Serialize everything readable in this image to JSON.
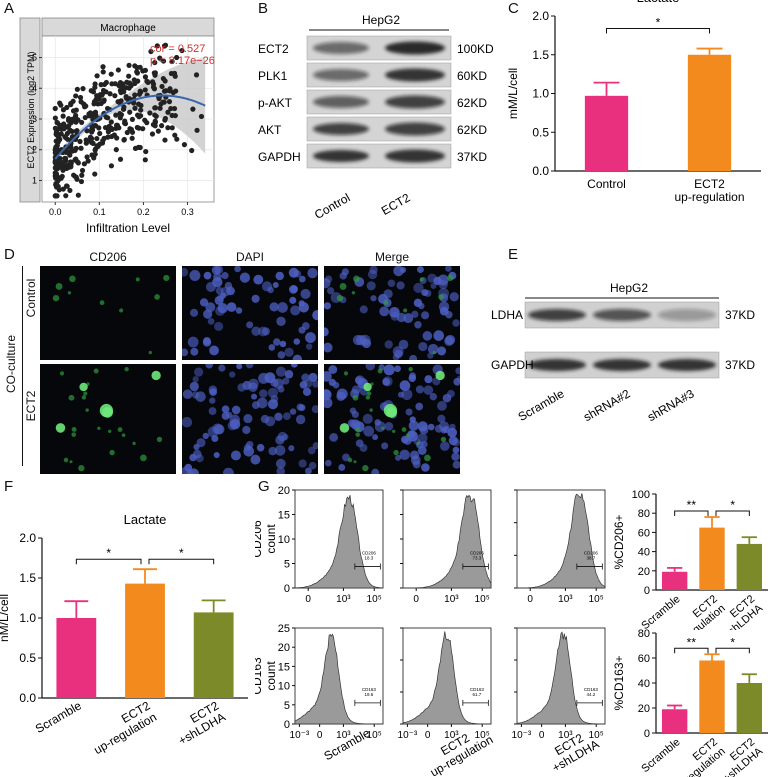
{
  "panel_labels": {
    "a": "A",
    "b": "B",
    "c": "C",
    "d": "D",
    "e": "E",
    "f": "F",
    "g": "G"
  },
  "panel_a": {
    "strip_title": "Macrophage",
    "ylabel": "ECT2 Expression (log2 TPM)",
    "xlabel": "Infiltration Level",
    "cor_text": "cor = 0.527",
    "p_text": "p = 8.17e−26",
    "xticks": [
      "0.0",
      "0.1",
      "0.2",
      "0.3"
    ],
    "yticks": [
      "1",
      "2",
      "3",
      "4",
      "5"
    ],
    "colors": {
      "points": "#222222",
      "fit": "#3a66b0",
      "band": "#c8c8c8",
      "stat": "#d0312d"
    }
  },
  "panel_b": {
    "cell_line": "HepG2",
    "rows": [
      {
        "protein": "ECT2",
        "size": "100KD"
      },
      {
        "protein": "PLK1",
        "size": "60KD"
      },
      {
        "protein": "p-AKT",
        "size": "62KD"
      },
      {
        "protein": "AKT",
        "size": "62KD"
      },
      {
        "protein": "GAPDH",
        "size": "37KD"
      }
    ],
    "lanes": [
      "Control",
      "ECT2"
    ]
  },
  "panel_e": {
    "cell_line": "HepG2",
    "rows": [
      {
        "protein": "LDHA",
        "size": "37KD"
      },
      {
        "protein": "GAPDH",
        "size": "37KD"
      }
    ],
    "lanes": [
      "Scramble",
      "shRNA#2",
      "shRNA#3"
    ]
  },
  "panel_d": {
    "columns": [
      "CD206",
      "DAPI",
      "Merge"
    ],
    "group_label": "CO-culture",
    "rows": [
      "Control",
      "ECT2"
    ]
  },
  "panel_g_flow": {
    "row_labels": [
      "CD206",
      "CD163"
    ],
    "ylabel": "count",
    "col_labels": [
      "Scramble",
      "ECT2\nup-regulation",
      "ECT2\n+shLDHA"
    ],
    "gates": [
      [
        "CD206\n18.3",
        "CD206\n73.3",
        "CD206\n38.7"
      ],
      [
        "CD163\n19.6",
        "CD163\n61.7",
        "CD163\n44.2"
      ]
    ]
  },
  "chart_data": [
    {
      "type": "bar",
      "panel": "C",
      "title": "Lactate",
      "ylabel": "mM/L/cell",
      "categories": [
        "Control",
        "ECT2\nup-regulation"
      ],
      "values": [
        0.97,
        1.5
      ],
      "errors": [
        0.17,
        0.08
      ],
      "colors": [
        "#e8307f",
        "#f28a1e"
      ],
      "ylim": [
        0,
        2.0
      ],
      "yticks": [
        "0.0",
        "0.5",
        "1.0",
        "1.5",
        "2.0"
      ],
      "significance": [
        {
          "from": 0,
          "to": 1,
          "label": "*"
        }
      ]
    },
    {
      "type": "bar",
      "panel": "F",
      "title": "Lactate",
      "ylabel": "nM/L/cell",
      "categories": [
        "Scramble",
        "ECT2\nup-regulation",
        "ECT2\n+shLDHA"
      ],
      "values": [
        1.0,
        1.43,
        1.07
      ],
      "errors": [
        0.21,
        0.18,
        0.15
      ],
      "colors": [
        "#e8307f",
        "#f28a1e",
        "#7d8a2a"
      ],
      "ylim": [
        0,
        2.0
      ],
      "yticks": [
        "0.0",
        "0.5",
        "1.0",
        "1.5",
        "2.0"
      ],
      "significance": [
        {
          "from": 0,
          "to": 1,
          "label": "*"
        },
        {
          "from": 1,
          "to": 2,
          "label": "*"
        }
      ]
    },
    {
      "type": "bar",
      "panel": "G-top",
      "ylabel": "%CD206+",
      "categories": [
        "Scramble",
        "ECT2\nup-regulation",
        "ECT2\n+shLDHA"
      ],
      "values": [
        19,
        65,
        48
      ],
      "errors": [
        4,
        11,
        7
      ],
      "colors": [
        "#e8307f",
        "#f28a1e",
        "#7d8a2a"
      ],
      "ylim": [
        0,
        100
      ],
      "yticks": [
        "0",
        "20",
        "40",
        "60",
        "80",
        "100"
      ],
      "significance": [
        {
          "from": 0,
          "to": 1,
          "label": "**"
        },
        {
          "from": 1,
          "to": 2,
          "label": "*"
        }
      ]
    },
    {
      "type": "bar",
      "panel": "G-bottom",
      "ylabel": "%CD163+",
      "categories": [
        "Scramble",
        "ECT2\nup-regulation",
        "ECT2\n+shLDHA"
      ],
      "values": [
        19,
        58,
        40
      ],
      "errors": [
        3,
        5,
        7
      ],
      "colors": [
        "#e8307f",
        "#f28a1e",
        "#7d8a2a"
      ],
      "ylim": [
        0,
        80
      ],
      "yticks": [
        "0",
        "20",
        "40",
        "60",
        "80"
      ],
      "significance": [
        {
          "from": 0,
          "to": 1,
          "label": "**"
        },
        {
          "from": 1,
          "to": 2,
          "label": "*"
        }
      ]
    }
  ]
}
